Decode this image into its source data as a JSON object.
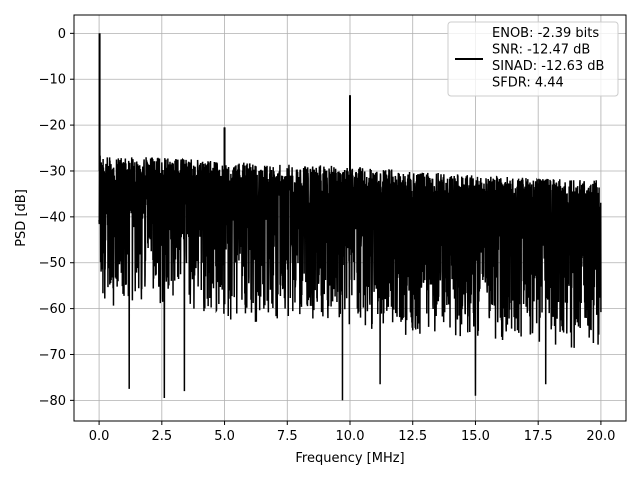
{
  "chart_data": {
    "type": "line",
    "title": "",
    "xlabel": "Frequency [MHz]",
    "ylabel": "PSD [dB]",
    "xlim": [
      -1.0,
      21.0
    ],
    "ylim": [
      -84.5,
      4.0
    ],
    "xticks": [
      0.0,
      2.5,
      5.0,
      7.5,
      10.0,
      12.5,
      15.0,
      17.5,
      20.0
    ],
    "xtick_labels": [
      "0.0",
      "2.5",
      "5.0",
      "7.5",
      "10.0",
      "12.5",
      "15.0",
      "17.5",
      "20.0"
    ],
    "yticks": [
      0,
      -10,
      -20,
      -30,
      -40,
      -50,
      -60,
      -70,
      -80
    ],
    "ytick_labels": [
      "0",
      "−10",
      "−20",
      "−30",
      "−40",
      "−50",
      "−60",
      "−70",
      "−80"
    ],
    "grid": true,
    "legend_position": "top-right",
    "legend_lines": [
      "ENOB: -2.39 bits",
      "SNR: -12.47 dB",
      "SINAD: -12.63 dB",
      "SFDR: 4.44"
    ],
    "series": [
      {
        "color": "#000000",
        "description_of_trace": "dense noise spectrum",
        "noise_floor_upper": {
          "x": [
            0.0,
            0.2,
            2.5,
            5.0,
            10.0,
            15.0,
            20.0
          ],
          "y": [
            -25,
            -27,
            -27,
            -28,
            -29,
            -31,
            -32
          ]
        },
        "noise_floor_lower": {
          "x": [
            0.0,
            20.0
          ],
          "y": [
            -55,
            -65
          ]
        },
        "peaks": [
          {
            "x": 0.02,
            "y": 0.0
          },
          {
            "x": 5.0,
            "y": -20.5
          },
          {
            "x": 10.0,
            "y": -13.5
          }
        ],
        "deep_troughs": [
          {
            "x": 1.2,
            "y": -77.5
          },
          {
            "x": 2.6,
            "y": -79.5
          },
          {
            "x": 3.4,
            "y": -78.0
          },
          {
            "x": 9.7,
            "y": -80.0
          },
          {
            "x": 11.2,
            "y": -76.5
          },
          {
            "x": 15.0,
            "y": -79.0
          },
          {
            "x": 17.8,
            "y": -76.5
          }
        ]
      }
    ]
  }
}
